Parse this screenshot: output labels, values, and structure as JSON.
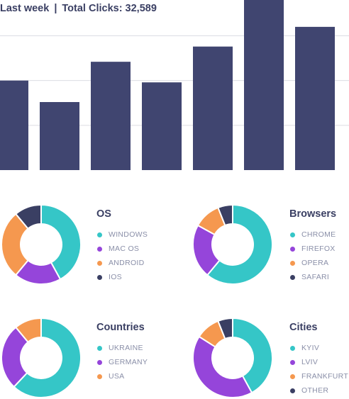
{
  "header": {
    "period": "Last week",
    "separator": "|",
    "total_label": "Total Clicks: 32,589"
  },
  "colors": {
    "bar": "#404570",
    "grid": "#dcdde3",
    "teal": "#35c6c7",
    "purple": "#9545da",
    "orange": "#f5984f",
    "navy": "#3a3f63",
    "muted_text": "#8a8fa8"
  },
  "chart_data": [
    {
      "type": "bar",
      "title": "",
      "values": [
        100,
        76,
        121,
        98,
        138,
        190,
        160
      ],
      "ylim": [
        0,
        190
      ],
      "grid": true,
      "gridlines": [
        50,
        100,
        150
      ]
    },
    {
      "type": "pie",
      "donut": true,
      "title": "OS",
      "labels": [
        "WINDOWS",
        "MAC OS",
        "ANDROID",
        "IOS"
      ],
      "values": [
        42,
        19,
        28,
        11
      ],
      "colors": [
        "#35c6c7",
        "#9545da",
        "#f5984f",
        "#3a3f63"
      ]
    },
    {
      "type": "pie",
      "donut": true,
      "title": "Browsers",
      "labels": [
        "CHROME",
        "FIREFOX",
        "OPERA",
        "SAFARI"
      ],
      "values": [
        61,
        22,
        11,
        6
      ],
      "colors": [
        "#35c6c7",
        "#9545da",
        "#f5984f",
        "#3a3f63"
      ]
    },
    {
      "type": "pie",
      "donut": true,
      "title": "Countries",
      "labels": [
        "UKRAINE",
        "GERMANY",
        "USA"
      ],
      "values": [
        62,
        27,
        11
      ],
      "colors": [
        "#35c6c7",
        "#9545da",
        "#f5984f"
      ]
    },
    {
      "type": "pie",
      "donut": true,
      "title": "Cities",
      "labels": [
        "KYIV",
        "LVIV",
        "FRANKFURT",
        "OTHER"
      ],
      "values": [
        42,
        42,
        10,
        6
      ],
      "colors": [
        "#35c6c7",
        "#9545da",
        "#f5984f",
        "#3a3f63"
      ]
    }
  ]
}
